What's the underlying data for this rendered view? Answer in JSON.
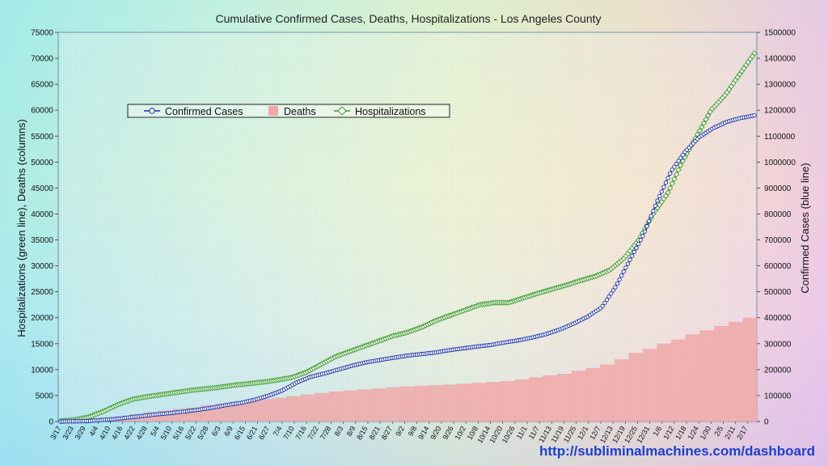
{
  "url_text": "http://subliminalmachines.com/dashboard",
  "chart_data": {
    "type": "line",
    "title": "Cumulative Confirmed Cases, Deaths, Hospitalizations - Los Angeles County",
    "ylabel_left": "Hospitalizations (green line), Deaths (columns)",
    "ylabel_right": "Confirmed Cases (blue line)",
    "y_left_lim": [
      0,
      75000
    ],
    "y_left_ticks": [
      "0",
      "5000",
      "10000",
      "15000",
      "20000",
      "25000",
      "30000",
      "35000",
      "40000",
      "45000",
      "50000",
      "55000",
      "60000",
      "65000",
      "70000",
      "75000"
    ],
    "y_right_lim": [
      0,
      1500000
    ],
    "y_right_ticks": [
      "0",
      "100000",
      "200000",
      "300000",
      "400000",
      "500000",
      "600000",
      "700000",
      "800000",
      "900000",
      "1000000",
      "1100000",
      "1200000",
      "1300000",
      "1400000",
      "1500000"
    ],
    "x_tick_labels": [
      "3/17",
      "3/23",
      "3/29",
      "4/4",
      "4/10",
      "4/16",
      "4/22",
      "4/28",
      "5/4",
      "5/10",
      "5/16",
      "5/22",
      "5/28",
      "6/3",
      "6/9",
      "6/15",
      "6/21",
      "6/27",
      "7/4",
      "7/10",
      "7/16",
      "7/22",
      "7/28",
      "8/3",
      "8/9",
      "8/15",
      "8/21",
      "8/27",
      "9/2",
      "9/8",
      "9/14",
      "9/20",
      "9/26",
      "10/2",
      "10/8",
      "10/14",
      "10/20",
      "10/26",
      "11/1",
      "11/7",
      "11/13",
      "11/19",
      "11/25",
      "12/1",
      "12/7",
      "12/13",
      "12/19",
      "12/25",
      "12/31",
      "1/6",
      "1/12",
      "1/18",
      "1/24",
      "1/30",
      "2/5",
      "2/11",
      "2/17"
    ],
    "legend": [
      "Confirmed Cases",
      "Deaths",
      "Hospitalizations"
    ],
    "colors": {
      "cases": "#1a2fb0",
      "deaths": "#f0a8a8",
      "hospitalizations": "#3a9a2a"
    },
    "series": [
      {
        "name": "Hospitalizations",
        "axis": "left",
        "values": [
          100,
          350,
          900,
          2000,
          3300,
          4300,
          4800,
          5200,
          5600,
          6000,
          6300,
          6600,
          7000,
          7300,
          7600,
          8000,
          8500,
          9500,
          11000,
          12500,
          13500,
          14500,
          15500,
          16500,
          17200,
          18200,
          19500,
          20500,
          21500,
          22500,
          22900,
          22900,
          23800,
          24700,
          25500,
          26300,
          27200,
          28000,
          29200,
          31500,
          35000,
          40000,
          44000,
          50000,
          55000,
          60000,
          63000,
          67000,
          71000
        ]
      },
      {
        "name": "Deaths",
        "axis": "left",
        "values": [
          10,
          60,
          300,
          650,
          1000,
          1400,
          1800,
          2100,
          2400,
          2700,
          3100,
          3400,
          3700,
          4000,
          4300,
          4600,
          4900,
          5200,
          5500,
          5800,
          6000,
          6200,
          6400,
          6600,
          6800,
          6900,
          7000,
          7100,
          7300,
          7450,
          7600,
          7800,
          8100,
          8500,
          8900,
          9200,
          9800,
          10300,
          11000,
          12000,
          13200,
          14000,
          15000,
          15800,
          16800,
          17600,
          18400,
          19200,
          20000
        ]
      },
      {
        "name": "Confirmed Cases",
        "axis": "right",
        "values": [
          0,
          1000,
          2000,
          6000,
          10000,
          16000,
          22000,
          28000,
          33000,
          39000,
          46000,
          54000,
          64000,
          72000,
          84000,
          100000,
          120000,
          150000,
          172000,
          185000,
          200000,
          215000,
          228000,
          237000,
          246000,
          254000,
          260000,
          266000,
          275000,
          282000,
          289000,
          295000,
          305000,
          313000,
          324000,
          337000,
          355000,
          378000,
          405000,
          440000,
          520000,
          620000,
          720000,
          850000,
          965000,
          1040000,
          1095000,
          1130000,
          1155000,
          1170000,
          1180000
        ]
      }
    ]
  }
}
